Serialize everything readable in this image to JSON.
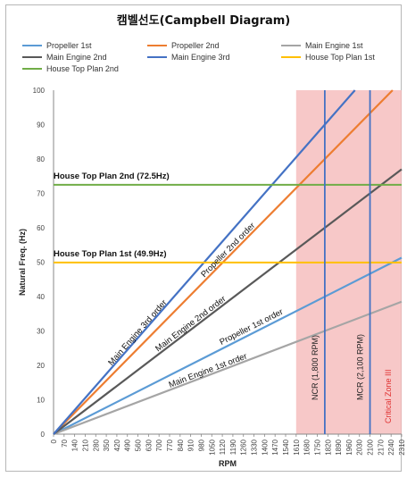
{
  "chart_data": {
    "type": "line",
    "title": "캠벨선도(Campbell Diagram)",
    "xlabel": "RPM",
    "ylabel": "Natural Freq. (Hz)",
    "xlim": [
      0,
      2310
    ],
    "ylim": [
      0,
      100
    ],
    "x_ticks": [
      0,
      70,
      140,
      210,
      280,
      350,
      420,
      490,
      560,
      630,
      700,
      770,
      840,
      910,
      980,
      1050,
      1120,
      1190,
      1260,
      1330,
      1400,
      1470,
      1540,
      1610,
      1680,
      1750,
      1820,
      1890,
      1960,
      2030,
      2100,
      2170,
      2240,
      2310
    ],
    "y_ticks": [
      0,
      10,
      20,
      30,
      40,
      50,
      60,
      70,
      80,
      90,
      100
    ],
    "grid": false,
    "legend_position": "top",
    "series": [
      {
        "name": "Propeller 1st",
        "color": "#5b9bd5",
        "x": [
          0,
          2310
        ],
        "y": [
          0,
          51.3
        ]
      },
      {
        "name": "Propeller 2nd",
        "color": "#ed7d31",
        "x": [
          0,
          2250
        ],
        "y": [
          0,
          100
        ]
      },
      {
        "name": "Main Engine 1st",
        "color": "#a5a5a5",
        "x": [
          0,
          2310
        ],
        "y": [
          0,
          38.5
        ]
      },
      {
        "name": "Main Engine 2nd",
        "color": "#595959",
        "x": [
          0,
          2310
        ],
        "y": [
          0,
          77
        ]
      },
      {
        "name": "Main Engine 3rd",
        "color": "#4472c4",
        "x": [
          0,
          2000
        ],
        "y": [
          0,
          100
        ]
      },
      {
        "name": "House Top Plan 1st",
        "color": "#ffc000",
        "x": [
          0,
          2310
        ],
        "y": [
          49.9,
          49.9
        ]
      },
      {
        "name": "House Top Plan 2nd",
        "color": "#70ad47",
        "x": [
          0,
          2310
        ],
        "y": [
          72.5,
          72.5
        ]
      }
    ],
    "line_labels": [
      {
        "text": "Main Engine 3rd order",
        "series": "Main Engine 3rd",
        "x": 570,
        "y": 29
      },
      {
        "text": "Propeller 2nd order",
        "series": "Propeller 2nd",
        "x": 1170,
        "y": 53
      },
      {
        "text": "Main Engine 2nd order",
        "series": "Main Engine 2nd",
        "x": 920,
        "y": 31.5
      },
      {
        "text": "Propeller 1st order",
        "series": "Propeller 1st",
        "x": 1320,
        "y": 30.5
      },
      {
        "text": "Main Engine 1st order",
        "series": "Main Engine 1st",
        "x": 1030,
        "y": 17.8
      }
    ],
    "horizontal_labels": [
      {
        "text": "House Top Plan 2nd (72.5Hz)",
        "x": 0,
        "y": 73.3
      },
      {
        "text": "House Top Plan 1st (49.9Hz)",
        "x": 0,
        "y": 50.7
      }
    ],
    "critical_zone": {
      "x_start": 1610,
      "x_end": 2310,
      "color": "#f4b6b6",
      "label": "Critical Zone III",
      "label_color": "#e03030"
    },
    "vlines": [
      {
        "x": 1800,
        "label": "NCR (1,800 RPM)",
        "color": "#4472c4"
      },
      {
        "x": 2100,
        "label": "MCR (2,100 RPM)",
        "color": "#4472c4"
      }
    ]
  }
}
